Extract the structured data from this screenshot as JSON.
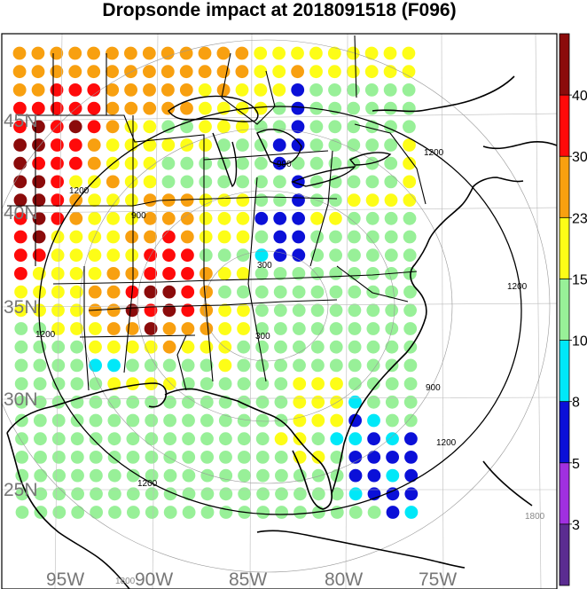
{
  "title": "Dropsonde impact at 2018091518 (F096)",
  "colors": {
    "background": "#ffffff",
    "coast": "#000000",
    "grid": "#bbbbbb",
    "label_grey": "#777777"
  },
  "colorbar": {
    "bins": [
      {
        "color": "#5b2c91"
      },
      {
        "color": "#a030e0"
      },
      {
        "color": "#0b10d8"
      },
      {
        "color": "#00e8f8"
      },
      {
        "color": "#98f098"
      },
      {
        "color": "#fdfd17"
      },
      {
        "color": "#f8a010"
      },
      {
        "color": "#ff0a0a"
      },
      {
        "color": "#8b0b0b"
      }
    ],
    "tick_labels": [
      "3",
      "5",
      "8",
      "10",
      "15",
      "23",
      "30",
      "40"
    ]
  },
  "lat_labels": [
    "45N",
    "40N",
    "35N",
    "30N",
    "25N"
  ],
  "lon_labels": [
    "95W",
    "90W",
    "85W",
    "80W",
    "75W"
  ],
  "contour_labels": [
    "300",
    "300",
    "900",
    "900",
    "900",
    "1200",
    "1200",
    "1200",
    "1200",
    "1200",
    "1200",
    "1200",
    "1800",
    "1800"
  ],
  "chart_data": {
    "type": "heatmap",
    "title": "Dropsonde impact at 2018091518 (F096)",
    "lat_range": [
      22,
      48
    ],
    "lon_range": [
      -98,
      -71
    ],
    "legend_levels": [
      3,
      5,
      8,
      10,
      15,
      23,
      30,
      40
    ],
    "grid_rows": [
      "6666666666666555555555",
      "6666666666666556555555",
      "6677766666565552444444",
      "7777766666555542444444",
      "7878765544555442444444",
      "8877655555544422444445",
      "8777655544444424444445",
      "8875565544444442444445",
      "8876555666555442445555",
      "7876555666555222554444",
      "7855556676555422444444",
      "7755555777444322444444",
      "7555566777655444444444",
      "5555667887644444444444",
      "5555668787655444444444",
      "4455566866655444444444",
      "4444555565554444444444",
      "4444334444454444444444",
      "4444455554444445554444",
      "4444444444444445553444",
      "4444444444444445552344",
      "4444444444444455433232",
      "4444444444444445542222",
      "4444444444444444442232",
      "4444444444444444443222",
      "4444444444444444444423"
    ],
    "color_index_legend": [
      "0:<3",
      "1:3-5",
      "2:5-8",
      "3:8-10",
      "4:10-15",
      "5:15-23",
      "6:23-30",
      "7:30-40",
      "8:>40"
    ]
  }
}
